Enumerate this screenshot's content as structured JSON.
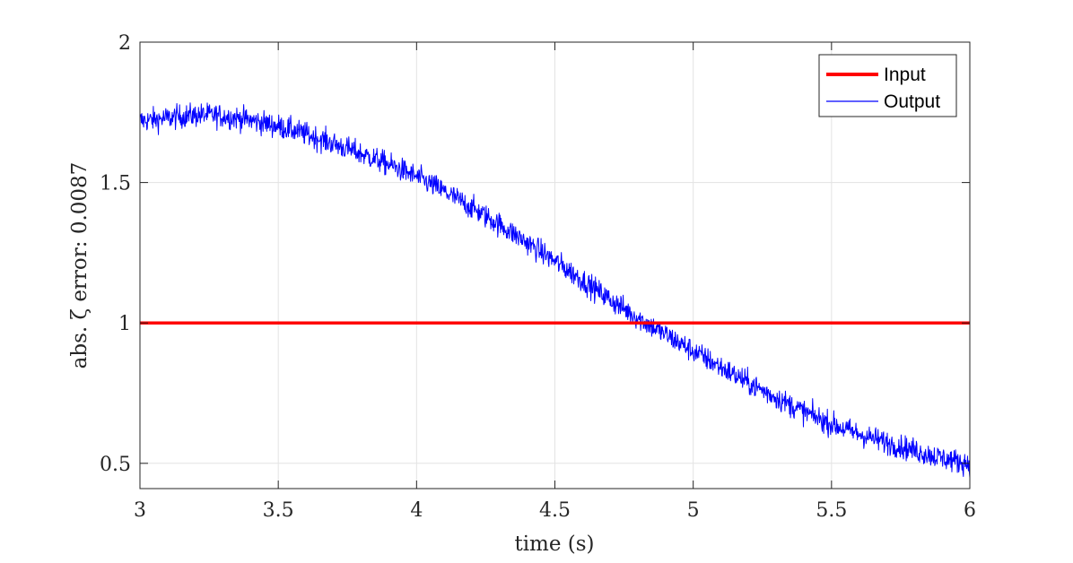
{
  "chart_data": {
    "type": "line",
    "xlabel": "time (s)",
    "ylabel": "abs. ζ error: 0.0087",
    "xlim": [
      3,
      6
    ],
    "ylim": [
      0.41,
      2
    ],
    "grid": true,
    "legend_position": "top-right",
    "x_ticks": [
      3,
      3.5,
      4,
      4.5,
      5,
      5.5,
      6
    ],
    "x_tick_labels": [
      "3",
      "3.5",
      "4",
      "4.5",
      "5",
      "5.5",
      "6"
    ],
    "y_ticks": [
      0.5,
      1,
      1.5,
      2
    ],
    "y_tick_labels": [
      "0.5",
      "1",
      "1.5",
      "2"
    ],
    "series": [
      {
        "name": "Input",
        "color": "#ff0000",
        "x": [
          3,
          6
        ],
        "y": [
          1,
          1
        ]
      },
      {
        "name": "Output",
        "color": "#0000ff",
        "noise_amplitude": 0.03,
        "x": [
          3.0,
          3.25,
          3.5,
          3.75,
          4.0,
          4.25,
          4.5,
          4.75,
          5.0,
          5.25,
          5.5,
          5.75,
          6.0
        ],
        "y": [
          1.72,
          1.74,
          1.7,
          1.62,
          1.52,
          1.38,
          1.22,
          1.05,
          0.9,
          0.76,
          0.64,
          0.56,
          0.5
        ]
      }
    ]
  }
}
